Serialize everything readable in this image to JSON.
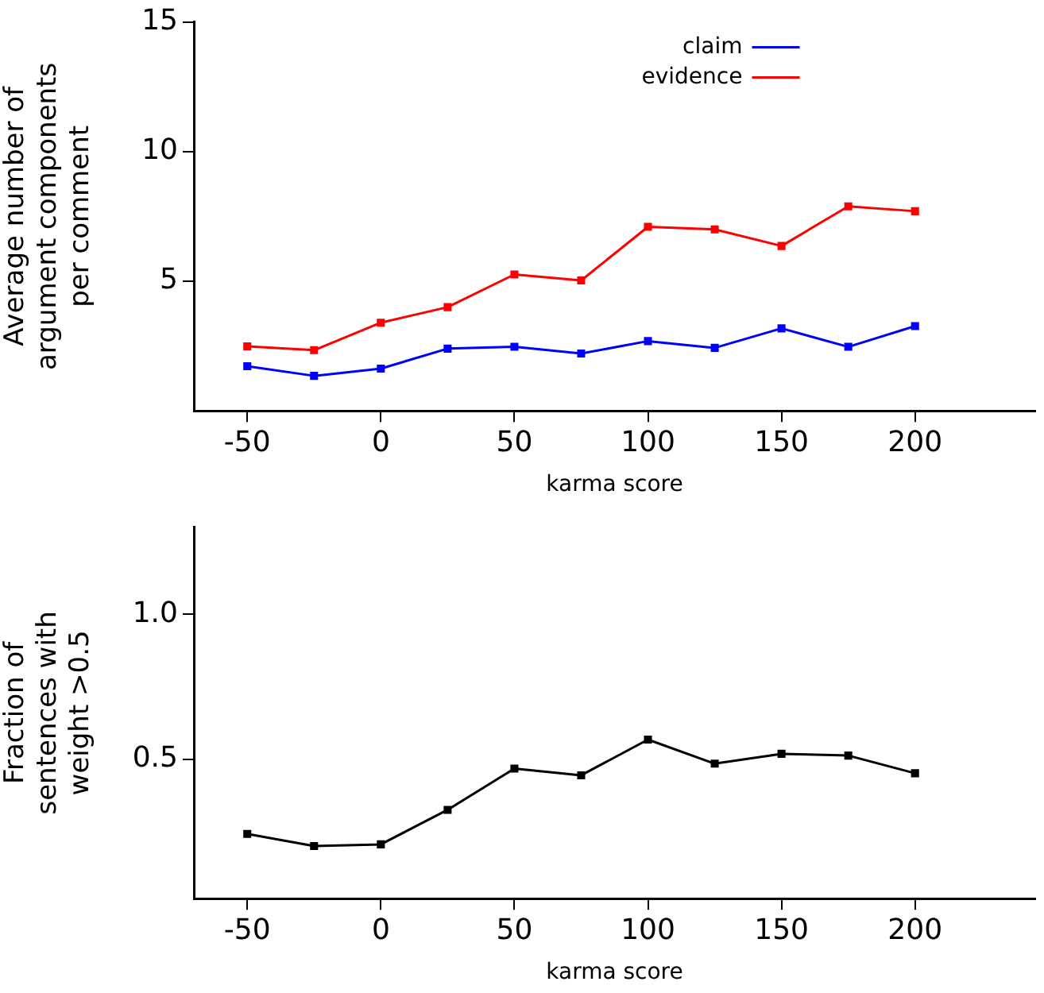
{
  "chart_data": [
    {
      "type": "line",
      "xlabel": "karma score",
      "ylabel": "Average number of argument components per comment",
      "x": [
        -50,
        -25,
        0,
        25,
        50,
        75,
        100,
        125,
        150,
        175,
        200
      ],
      "xlim": [
        -70,
        245
      ],
      "xticks": [
        -50,
        0,
        50,
        100,
        150,
        200
      ],
      "ylim": [
        0,
        15
      ],
      "yticks": [
        5,
        10,
        15
      ],
      "grid": false,
      "legend": "top",
      "marker": "square",
      "series": [
        {
          "name": "claim",
          "color": "#0000ff",
          "values": [
            1.72,
            1.35,
            1.63,
            2.4,
            2.47,
            2.21,
            2.69,
            2.43,
            3.18,
            2.47,
            3.27
          ]
        },
        {
          "name": "evidence",
          "color": "#ff0000",
          "values": [
            2.49,
            2.34,
            3.4,
            4.0,
            5.26,
            5.03,
            7.1,
            7.0,
            6.36,
            7.89,
            7.7
          ]
        }
      ]
    },
    {
      "type": "line",
      "xlabel": "karma score",
      "ylabel": "Fraction of sentences with weight >0.5",
      "x": [
        -50,
        -25,
        0,
        25,
        50,
        75,
        100,
        125,
        150,
        175,
        200
      ],
      "xlim": [
        -70,
        245
      ],
      "xticks": [
        -50,
        0,
        50,
        100,
        150,
        200
      ],
      "ylim": [
        0.02,
        1.3
      ],
      "yticks": [
        {
          "value": 0.5,
          "label": "0.5"
        },
        {
          "value": 1.0,
          "label": "1.0"
        }
      ],
      "grid": false,
      "marker": "square",
      "series": [
        {
          "color": "#000000",
          "values": [
            0.243,
            0.201,
            0.207,
            0.326,
            0.468,
            0.445,
            0.568,
            0.485,
            0.519,
            0.513,
            0.452
          ]
        }
      ]
    }
  ]
}
